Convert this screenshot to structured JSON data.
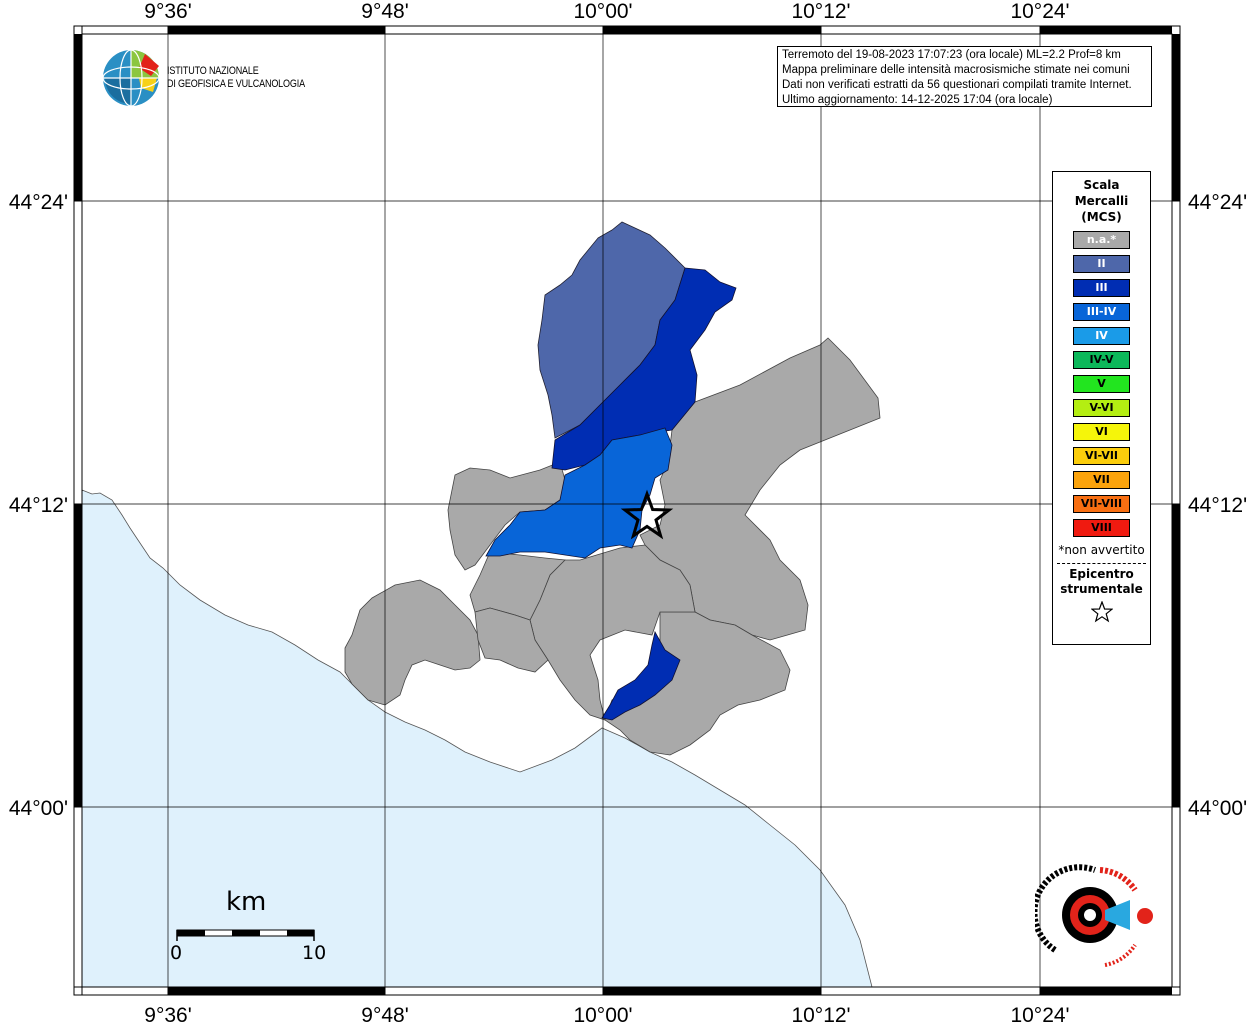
{
  "map": {
    "lon_labels": [
      "9°36'",
      "9°48'",
      "10°00'",
      "10°12'",
      "10°24'"
    ],
    "lat_labels": [
      "44°24'",
      "44°12'",
      "44°00'"
    ],
    "sea_color": "#dff1fc",
    "land_color": "#ffffff",
    "na_color": "#a9a9a9",
    "epicenter_icon": "star-icon"
  },
  "logo": {
    "icon": "ingv-globe-icon",
    "line1": "ISTITUTO NAZIONALE",
    "line2": "DI GEOFISICA E VULCANOLOGIA"
  },
  "info": {
    "line1": "Terremoto del 19-08-2023 17:07:23 (ora locale) ML=2.2 Prof=8 km",
    "line2": "Mappa preliminare delle intensità macrosismiche stimate nei comuni",
    "line3": "Dati non verificati estratti da 56 questionari compilati tramite Internet.",
    "line4": "Ultimo aggiornamento: 14-12-2025 17:04 (ora locale)"
  },
  "legend": {
    "title1": "Scala",
    "title2": "Mercalli",
    "title3": "(MCS)",
    "items": [
      {
        "label": "n.a.*",
        "color": "#a9a9a9",
        "text": "#ffffff"
      },
      {
        "label": "II",
        "color": "#4e67aa",
        "text": "#ffffff"
      },
      {
        "label": "III",
        "color": "#002db3",
        "text": "#ffffff"
      },
      {
        "label": "III-IV",
        "color": "#0865d8",
        "text": "#ffffff"
      },
      {
        "label": "IV",
        "color": "#1a9be8",
        "text": "#ffffff"
      },
      {
        "label": "IV-V",
        "color": "#0cb85a",
        "text": "#000000"
      },
      {
        "label": "V",
        "color": "#22e51f",
        "text": "#000000"
      },
      {
        "label": "V-VI",
        "color": "#b4ee12",
        "text": "#000000"
      },
      {
        "label": "VI",
        "color": "#f5f50a",
        "text": "#000000"
      },
      {
        "label": "VI-VII",
        "color": "#fbcd0c",
        "text": "#000000"
      },
      {
        "label": "VII",
        "color": "#fba30c",
        "text": "#000000"
      },
      {
        "label": "VII-VIII",
        "color": "#f86f12",
        "text": "#000000"
      },
      {
        "label": "VIII",
        "color": "#f01a10",
        "text": "#000000"
      }
    ],
    "note": "*non avvertito",
    "epi1": "Epicentro",
    "epi2": "strumentale",
    "epi_icon": "star-outline-icon"
  },
  "scale": {
    "unit": "km",
    "min": "0",
    "max": "10"
  },
  "brand": {
    "icon": "haisentito-terremoto-logo-icon"
  }
}
